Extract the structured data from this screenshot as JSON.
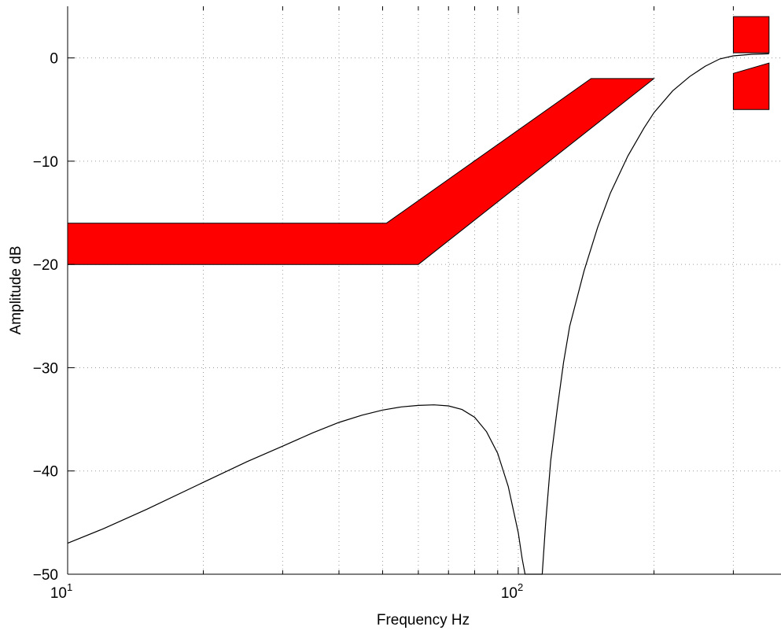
{
  "chart_data": {
    "type": "line",
    "title": "",
    "xlabel": "Frequency Hz",
    "ylabel": "Amplitude dB",
    "xscale": "log",
    "xlim": [
      10,
      360
    ],
    "ylim": [
      -50,
      5
    ],
    "grid": true,
    "grid_style": "dotted",
    "x_ticks": [
      {
        "base": "10",
        "exp": "1",
        "value": 10
      },
      {
        "base": "10",
        "exp": "2",
        "value": 100
      }
    ],
    "y_ticks": [
      {
        "label": "0",
        "value": 0
      },
      {
        "label": "−10",
        "value": -10
      },
      {
        "label": "−20",
        "value": -20
      },
      {
        "label": "−30",
        "value": -30
      },
      {
        "label": "−40",
        "value": -40
      },
      {
        "label": "−50",
        "value": -50
      }
    ],
    "colors": {
      "mask": "#ff0000",
      "curve": "#000000",
      "grid": "#9a9a9a"
    },
    "mask_regions": [
      {
        "points": [
          [
            10,
            -16
          ],
          [
            51,
            -16
          ],
          [
            145,
            -2
          ],
          [
            200,
            -2
          ],
          [
            60,
            -20
          ],
          [
            10,
            -20
          ]
        ]
      },
      {
        "points": [
          [
            300,
            4
          ],
          [
            360,
            4
          ],
          [
            360,
            0.5
          ],
          [
            300,
            0.5
          ]
        ]
      },
      {
        "points": [
          [
            300,
            -1.5
          ],
          [
            360,
            -0.5
          ],
          [
            360,
            -5
          ],
          [
            300,
            -5
          ]
        ]
      }
    ],
    "series": [
      {
        "points": [
          [
            10,
            -47
          ],
          [
            12,
            -45.6
          ],
          [
            15,
            -43.7
          ],
          [
            20,
            -41.1
          ],
          [
            25,
            -39.1
          ],
          [
            30,
            -37.6
          ],
          [
            35,
            -36.3
          ],
          [
            40,
            -35.3
          ],
          [
            45,
            -34.6
          ],
          [
            50,
            -34.1
          ],
          [
            55,
            -33.8
          ],
          [
            60,
            -33.65
          ],
          [
            65,
            -33.6
          ],
          [
            70,
            -33.7
          ],
          [
            75,
            -34.05
          ],
          [
            80,
            -34.8
          ],
          [
            85,
            -36.2
          ],
          [
            90,
            -38.3
          ],
          [
            95,
            -41.5
          ],
          [
            100,
            -46
          ],
          [
            102,
            -48.5
          ],
          [
            103.5,
            -51
          ],
          [
            113,
            -51
          ],
          [
            115,
            -45
          ],
          [
            118,
            -39
          ],
          [
            122,
            -34
          ],
          [
            126,
            -29.5
          ],
          [
            130,
            -26
          ],
          [
            140,
            -20.6
          ],
          [
            150,
            -16.4
          ],
          [
            160,
            -13.1
          ],
          [
            175,
            -9.5
          ],
          [
            190,
            -6.8
          ],
          [
            200,
            -5.3
          ],
          [
            220,
            -3.2
          ],
          [
            240,
            -1.8
          ],
          [
            260,
            -0.8
          ],
          [
            280,
            -0.1
          ],
          [
            300,
            0.2
          ],
          [
            330,
            0.35
          ],
          [
            360,
            0.4
          ]
        ]
      }
    ]
  }
}
